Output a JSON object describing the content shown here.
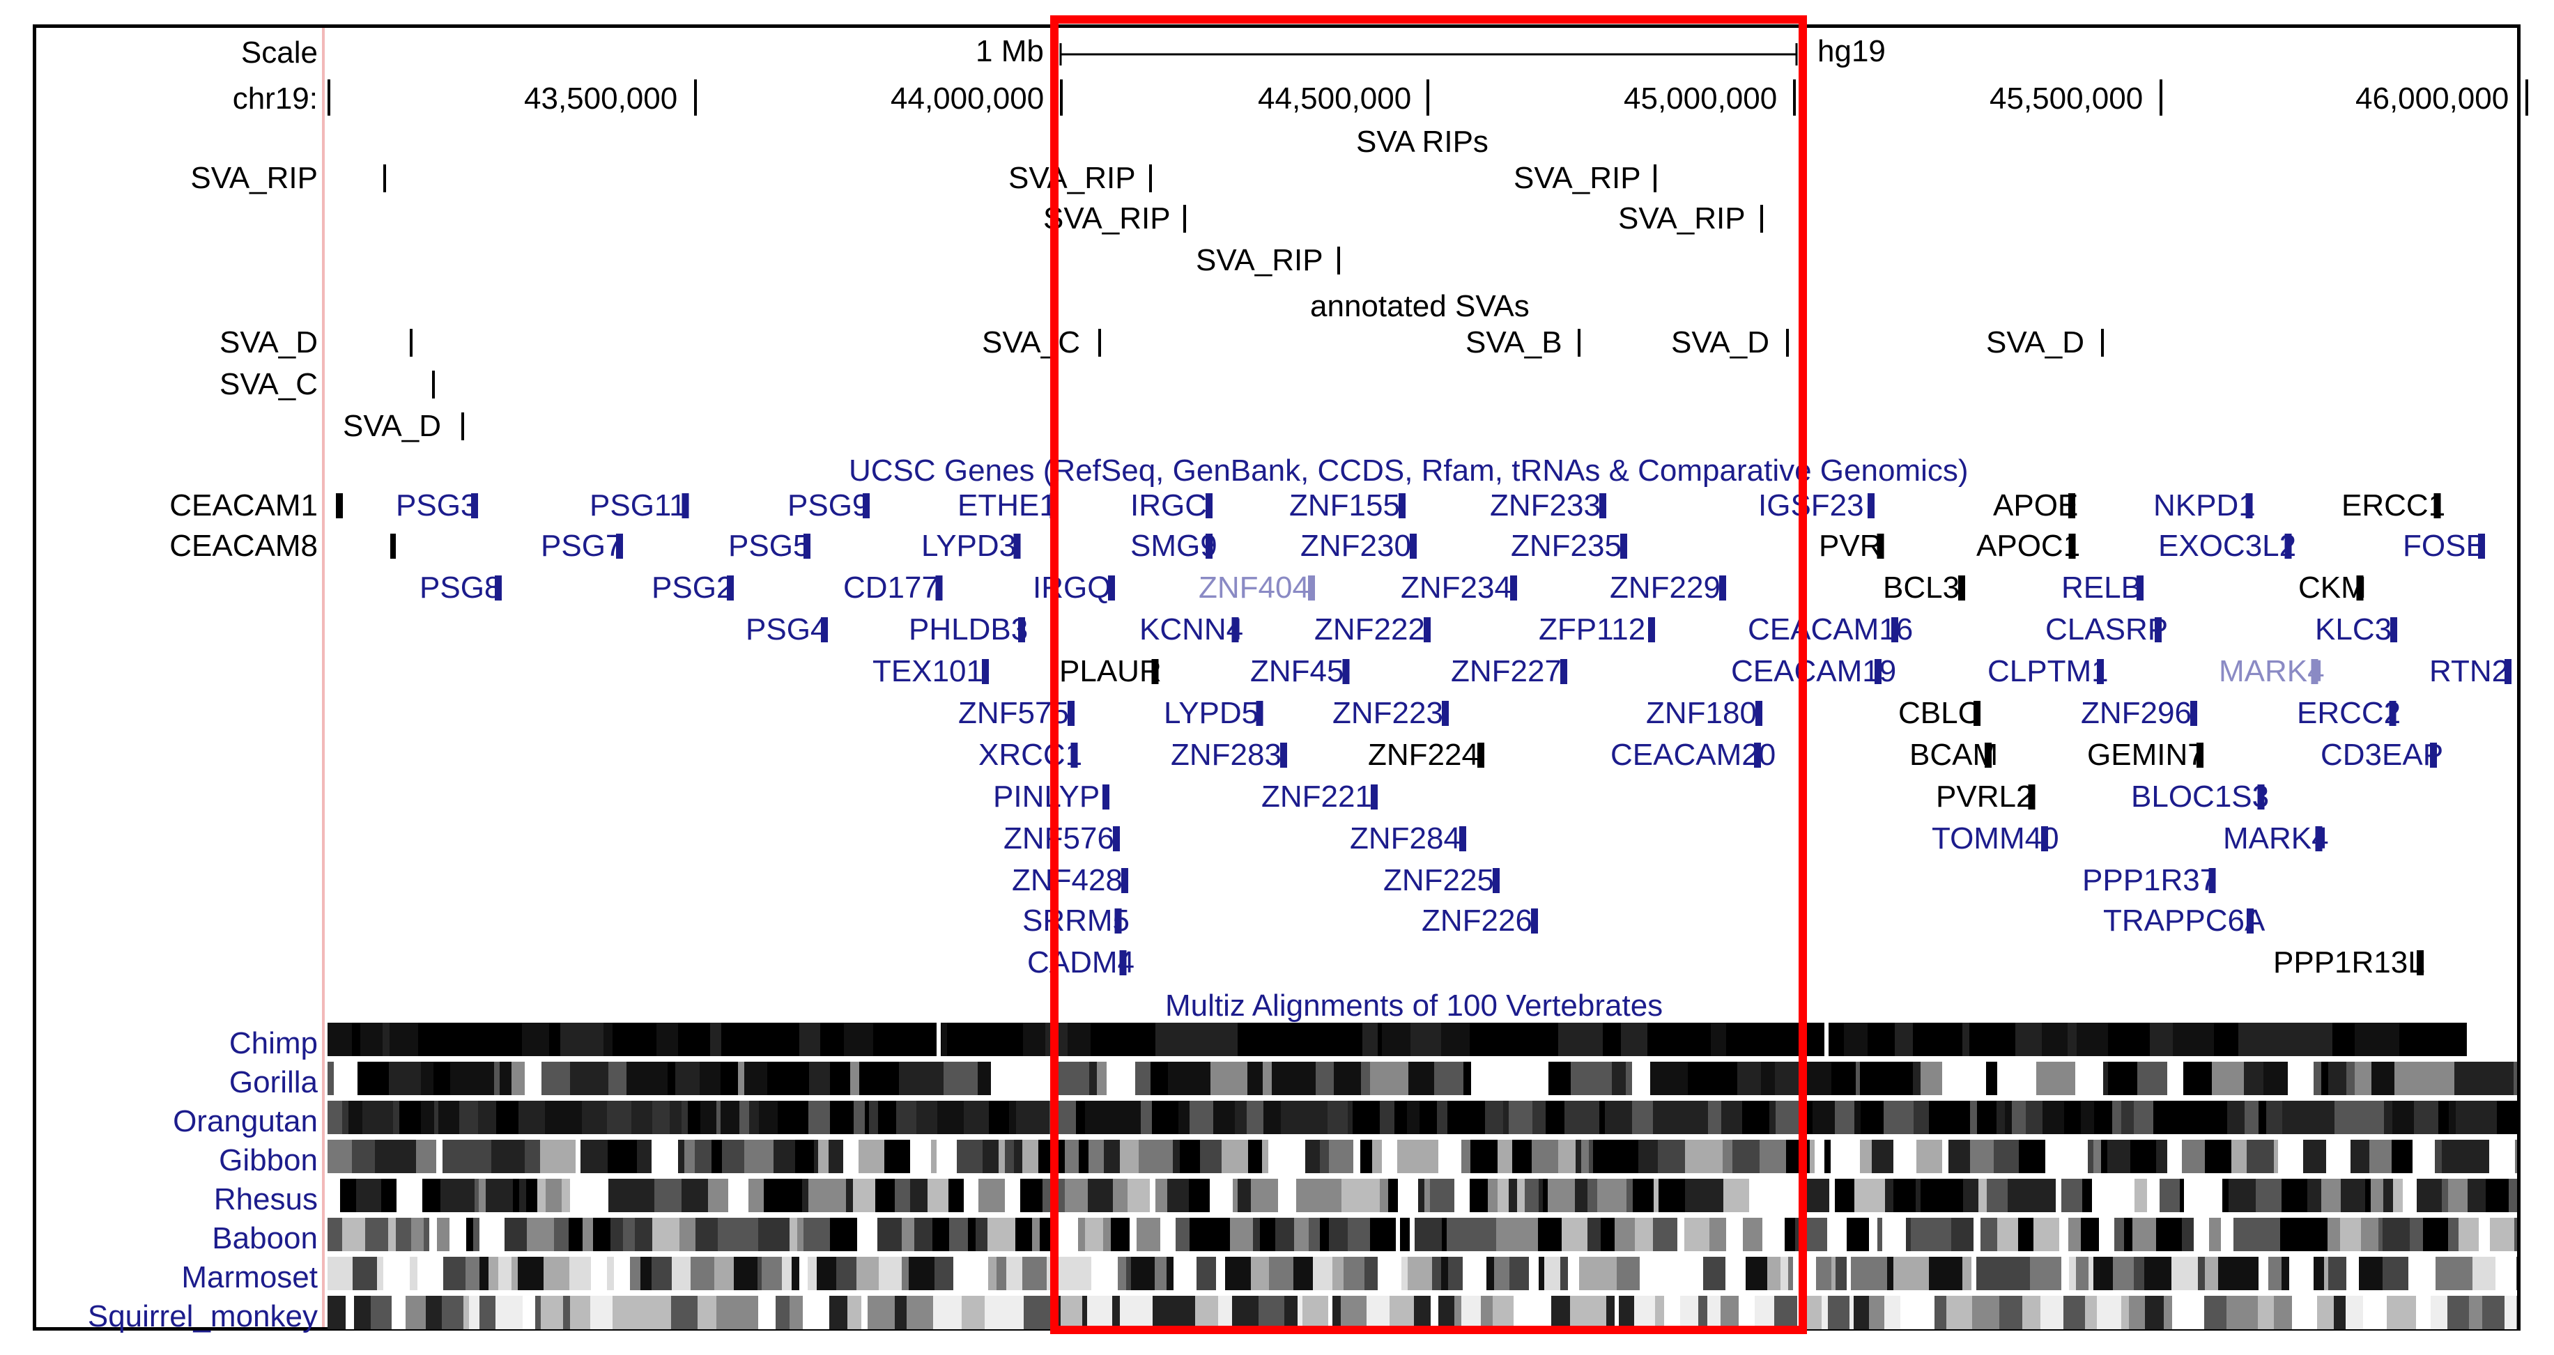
{
  "browser": {
    "scale": {
      "label": "Scale",
      "bar_label": "1 Mb",
      "assembly": "hg19"
    },
    "ruler": {
      "chrom_label": "chr19:",
      "ticks": [
        "43,500,000",
        "44,000,000",
        "44,500,000",
        "45,000,000",
        "45,500,000",
        "46,000,000"
      ]
    },
    "tracks": [
      {
        "title": "SVA RIPs",
        "rows": [
          {
            "left_label": "SVA_RIP",
            "items": [
              "SVA_RIP",
              "SVA_RIP"
            ]
          },
          {
            "left_label": "",
            "items": [
              "SVA_RIP",
              "SVA_RIP"
            ]
          },
          {
            "left_label": "",
            "items": [
              "SVA_RIP"
            ]
          }
        ]
      },
      {
        "title": "annotated SVAs",
        "rows": [
          {
            "left_label": "SVA_D",
            "items": [
              "SVA_C",
              "SVA_B",
              "SVA_D",
              "SVA_D"
            ]
          },
          {
            "left_label": "SVA_C",
            "items": []
          },
          {
            "left_label": "",
            "items": [
              "SVA_D"
            ]
          }
        ]
      },
      {
        "title": "UCSC Genes (RefSeq, GenBank, CCDS, Rfam, tRNAs & Comparative Genomics)",
        "rows": [
          {
            "left_label": "CEACAM1",
            "items": [
              "PSG3",
              "PSG11",
              "PSG9",
              "ETHE1",
              "IRGC",
              "ZNF155",
              "ZNF233",
              "IGSF23",
              "APOE",
              "NKPD1",
              "ERCC1"
            ]
          },
          {
            "left_label": "CEACAM8",
            "items": [
              "PSG7",
              "PSG5",
              "LYPD3",
              "SMG9",
              "ZNF230",
              "ZNF235",
              "PVR",
              "APOC1",
              "EXOC3L2",
              "FOSB"
            ]
          },
          {
            "left_label": "",
            "items": [
              "PSG8",
              "PSG2",
              "CD177",
              "IRGQ",
              "ZNF404",
              "ZNF234",
              "ZNF229",
              "BCL3",
              "RELB",
              "CKM"
            ]
          },
          {
            "left_label": "",
            "items": [
              "PSG4",
              "PHLDB3",
              "KCNN4",
              "ZNF222",
              "ZFP112",
              "CEACAM16",
              "CLASRP",
              "KLC3"
            ]
          },
          {
            "left_label": "",
            "items": [
              "TEX101",
              "PLAUR",
              "ZNF45",
              "ZNF227",
              "CEACAM19",
              "CLPTM1",
              "MARK4",
              "RTN2"
            ]
          },
          {
            "left_label": "",
            "items": [
              "ZNF575",
              "LYPD5",
              "ZNF223",
              "ZNF180",
              "CBLC",
              "ZNF296",
              "ERCC2"
            ]
          },
          {
            "left_label": "",
            "items": [
              "XRCC1",
              "ZNF283",
              "ZNF224",
              "CEACAM20",
              "BCAM",
              "GEMIN7",
              "CD3EAP"
            ]
          },
          {
            "left_label": "",
            "items": [
              "PINLYP",
              "ZNF221",
              "PVRL2",
              "BLOC1S3"
            ]
          },
          {
            "left_label": "",
            "items": [
              "ZNF576",
              "ZNF284",
              "TOMM40",
              "MARK4"
            ]
          },
          {
            "left_label": "",
            "items": [
              "ZNF428",
              "ZNF225",
              "PPP1R37"
            ]
          },
          {
            "left_label": "",
            "items": [
              "SRRM5",
              "ZNF226",
              "TRAPPC6A"
            ]
          },
          {
            "left_label": "",
            "items": [
              "CADM4",
              "PPP1R13L"
            ]
          }
        ]
      },
      {
        "title": "Multiz Alignments of 100 Vertebrates",
        "species": [
          "Chimp",
          "Gorilla",
          "Orangutan",
          "Gibbon",
          "Rhesus",
          "Baboon",
          "Marmoset",
          "Squirrel_monkey"
        ]
      }
    ],
    "colors": {
      "gene_blue": "#1c1c8c",
      "gene_light": "#8a8ac4",
      "black": "#000000",
      "highlight": "#ff0000",
      "label_col": "#f2b9b9"
    }
  }
}
